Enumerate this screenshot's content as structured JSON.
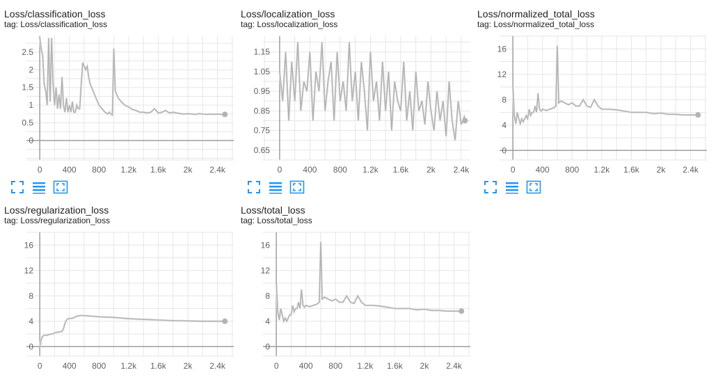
{
  "colors": {
    "line": "#b3b3b3",
    "raw": "#ececec",
    "grid": "#e6e6e6",
    "axis": "#9e9e9e",
    "icon": "#2196f3",
    "text": "#212121"
  },
  "toolbar_icons": [
    "fullscreen-icon",
    "toggle-y-log-icon",
    "fit-domain-icon"
  ],
  "chart_data": [
    {
      "type": "line",
      "title": "Loss/classification_loss",
      "tag": "tag: Loss/classification_loss",
      "xlim": [
        -180,
        2620
      ],
      "ylim": [
        -0.55,
        2.95
      ],
      "xticks": [
        0,
        400,
        800,
        1200,
        1600,
        2000,
        2400
      ],
      "xtick_labels": [
        "0",
        "400",
        "800",
        "1.2k",
        "1.6k",
        "2k",
        "2.4k"
      ],
      "yticks": [
        0,
        0.5,
        1,
        1.5,
        2,
        2.5
      ],
      "ytick_labels": [
        "0",
        "0.5",
        "1",
        "1.5",
        "2",
        "2.5"
      ],
      "series": [
        {
          "x": [
            0,
            20,
            40,
            60,
            80,
            100,
            120,
            140,
            160,
            180,
            200,
            220,
            240,
            260,
            280,
            300,
            320,
            340,
            360,
            380,
            400,
            420,
            440,
            460,
            480,
            500,
            520,
            540,
            560,
            580,
            600,
            620,
            640,
            660,
            680,
            700,
            720,
            740,
            760,
            780,
            800,
            820,
            840,
            860,
            880,
            900,
            920,
            940,
            960,
            980,
            1000,
            1020,
            1040,
            1060,
            1080,
            1100,
            1150,
            1200,
            1250,
            1300,
            1350,
            1400,
            1450,
            1500,
            1550,
            1600,
            1650,
            1700,
            1750,
            1800,
            1850,
            1900,
            1950,
            2000,
            2050,
            2100,
            2150,
            2200,
            2250,
            2300,
            2350,
            2400,
            2450,
            2500
          ],
          "y": [
            2.9,
            2.6,
            2.4,
            1.6,
            1.4,
            1.0,
            2.9,
            1.1,
            2.9,
            1.6,
            1.0,
            1.5,
            0.9,
            1.3,
            0.9,
            1.8,
            1.0,
            0.8,
            1.2,
            0.8,
            1.0,
            0.8,
            1.1,
            0.8,
            0.8,
            1.0,
            0.9,
            0.9,
            1.6,
            2.2,
            2.1,
            2.0,
            2.1,
            1.8,
            1.6,
            1.5,
            1.4,
            1.3,
            1.2,
            1.1,
            1.0,
            0.95,
            0.9,
            0.85,
            0.8,
            0.78,
            0.75,
            0.8,
            0.75,
            0.72,
            2.6,
            1.4,
            1.3,
            1.2,
            1.15,
            1.1,
            1.0,
            0.95,
            0.88,
            0.85,
            0.8,
            0.8,
            0.78,
            0.8,
            0.9,
            0.78,
            0.8,
            0.85,
            0.78,
            0.8,
            0.78,
            0.76,
            0.75,
            0.76,
            0.75,
            0.74,
            0.76,
            0.75,
            0.74,
            0.75,
            0.74,
            0.75,
            0.74,
            0.74
          ]
        }
      ]
    },
    {
      "type": "line",
      "title": "Loss/localization_loss",
      "tag": "tag: Loss/localization_loss",
      "xlim": [
        -220,
        2520
      ],
      "ylim": [
        0.6,
        1.23
      ],
      "xticks": [
        0,
        400,
        800,
        1200,
        1600,
        2000,
        2400
      ],
      "xtick_labels": [
        "0",
        "400",
        "800",
        "1.2k",
        "1.6k",
        "2k",
        "2.4k"
      ],
      "yticks": [
        0.65,
        0.75,
        0.85,
        0.95,
        1.05,
        1.15
      ],
      "ytick_labels": [
        "0.65",
        "0.75",
        "0.85",
        "0.95",
        "1.05",
        "1.15"
      ],
      "series": [
        {
          "x": [
            0,
            40,
            80,
            120,
            160,
            200,
            240,
            280,
            320,
            360,
            400,
            440,
            480,
            520,
            560,
            600,
            640,
            680,
            720,
            760,
            800,
            840,
            880,
            920,
            960,
            1000,
            1040,
            1080,
            1120,
            1160,
            1200,
            1240,
            1280,
            1320,
            1360,
            1400,
            1440,
            1480,
            1520,
            1560,
            1600,
            1640,
            1680,
            1720,
            1760,
            1800,
            1840,
            1880,
            1920,
            1960,
            2000,
            2040,
            2080,
            2120,
            2160,
            2200,
            2240,
            2280,
            2320,
            2360,
            2400,
            2440,
            2450
          ],
          "y": [
            1.05,
            0.9,
            1.15,
            0.8,
            1.1,
            0.9,
            1.2,
            0.85,
            1.0,
            0.95,
            1.15,
            0.8,
            1.05,
            0.95,
            1.2,
            0.85,
            1.0,
            1.1,
            0.8,
            1.15,
            0.9,
            1.0,
            0.85,
            1.2,
            0.9,
            1.05,
            0.8,
            1.1,
            0.95,
            0.75,
            1.15,
            0.9,
            1.0,
            0.8,
            1.1,
            0.85,
            1.05,
            0.75,
            1.0,
            0.9,
            0.85,
            1.1,
            0.8,
            0.95,
            0.75,
            1.05,
            0.85,
            0.9,
            0.78,
            1.0,
            0.85,
            0.75,
            0.95,
            0.8,
            0.9,
            0.72,
            1.0,
            0.8,
            0.7,
            0.9,
            0.78,
            0.82,
            0.8
          ]
        }
      ]
    },
    {
      "type": "line",
      "title": "Loss/normalized_total_loss",
      "tag": "tag: Loss/normalized_total_loss",
      "xlim": [
        -180,
        2620
      ],
      "ylim": [
        -1.5,
        18
      ],
      "xticks": [
        0,
        400,
        800,
        1200,
        1600,
        2000,
        2400
      ],
      "xtick_labels": [
        "0",
        "400",
        "800",
        "1.2k",
        "1.6k",
        "2k",
        "2.4k"
      ],
      "yticks": [
        0,
        4,
        8,
        12,
        16
      ],
      "ytick_labels": [
        "0",
        "4",
        "8",
        "12",
        "16"
      ],
      "series": [
        {
          "x": [
            0,
            20,
            40,
            60,
            80,
            100,
            120,
            140,
            160,
            180,
            200,
            220,
            240,
            260,
            280,
            300,
            320,
            340,
            360,
            380,
            400,
            450,
            500,
            550,
            580,
            600,
            620,
            650,
            700,
            750,
            800,
            850,
            900,
            950,
            1000,
            1050,
            1100,
            1150,
            1200,
            1300,
            1400,
            1500,
            1600,
            1700,
            1800,
            1900,
            2000,
            2100,
            2200,
            2300,
            2400,
            2500
          ],
          "y": [
            10,
            5.5,
            4.2,
            6,
            5,
            4.2,
            5,
            4.5,
            5,
            5.5,
            5,
            6.5,
            5.5,
            6,
            6,
            7,
            6,
            9,
            6.5,
            6.2,
            6.5,
            6.3,
            6.5,
            6.7,
            7,
            16.5,
            7.5,
            7.8,
            7.5,
            7.2,
            7.5,
            7,
            7,
            8,
            7,
            6.8,
            8,
            7,
            6.5,
            6.5,
            6.4,
            6.2,
            6,
            6,
            6,
            5.8,
            5.9,
            5.7,
            5.7,
            5.6,
            5.6,
            5.6
          ]
        }
      ]
    },
    {
      "type": "line",
      "title": "Loss/regularization_loss",
      "tag": "tag: Loss/regularization_loss",
      "xlim": [
        -180,
        2620
      ],
      "ylim": [
        -1.5,
        18
      ],
      "xticks": [
        0,
        400,
        800,
        1200,
        1600,
        2000,
        2400
      ],
      "xtick_labels": [
        "0",
        "400",
        "800",
        "1.2k",
        "1.6k",
        "2k",
        "2.4k"
      ],
      "yticks": [
        0,
        4,
        8,
        12,
        16
      ],
      "ytick_labels": [
        "0",
        "4",
        "8",
        "12",
        "16"
      ],
      "series": [
        {
          "x": [
            0,
            30,
            60,
            100,
            150,
            180,
            200,
            250,
            300,
            320,
            350,
            380,
            400,
            450,
            500,
            550,
            600,
            700,
            800,
            1000,
            1200,
            1400,
            1600,
            1800,
            2000,
            2200,
            2400,
            2500
          ],
          "y": [
            0,
            1.5,
            1.8,
            1.8,
            2.0,
            2.0,
            2.2,
            2.3,
            2.4,
            2.8,
            4.0,
            4.4,
            4.4,
            4.5,
            4.8,
            4.9,
            4.9,
            4.8,
            4.7,
            4.6,
            4.4,
            4.3,
            4.2,
            4.1,
            4.05,
            4.0,
            4.0,
            4.0
          ]
        }
      ]
    },
    {
      "type": "line",
      "title": "Loss/total_loss",
      "tag": "tag: Loss/total_loss",
      "xlim": [
        -180,
        2620
      ],
      "ylim": [
        -1.5,
        18
      ],
      "xticks": [
        0,
        400,
        800,
        1200,
        1600,
        2000,
        2400
      ],
      "xtick_labels": [
        "0",
        "400",
        "800",
        "1.2k",
        "1.6k",
        "2k",
        "2.4k"
      ],
      "yticks": [
        0,
        4,
        8,
        12,
        16
      ],
      "ytick_labels": [
        "0",
        "4",
        "8",
        "12",
        "16"
      ],
      "series": [
        {
          "x": [
            0,
            20,
            40,
            60,
            80,
            100,
            120,
            140,
            160,
            180,
            200,
            220,
            240,
            260,
            280,
            300,
            320,
            340,
            360,
            380,
            400,
            450,
            500,
            550,
            580,
            600,
            620,
            650,
            700,
            750,
            800,
            850,
            900,
            950,
            1000,
            1050,
            1100,
            1150,
            1200,
            1300,
            1400,
            1500,
            1600,
            1700,
            1800,
            1900,
            2000,
            2100,
            2200,
            2300,
            2400,
            2500
          ],
          "y": [
            10,
            5.5,
            4.2,
            6,
            5,
            4,
            4.5,
            4.0,
            4.5,
            5,
            5,
            6.5,
            5.5,
            6,
            6,
            7,
            6,
            9,
            6.5,
            6.2,
            6.5,
            6.3,
            6.5,
            6.7,
            7,
            16.5,
            7.5,
            7.8,
            7.5,
            7.2,
            7.5,
            7,
            7,
            8,
            7,
            6.8,
            8,
            7,
            6.5,
            6.5,
            6.4,
            6.2,
            6,
            6,
            6,
            5.8,
            5.9,
            5.7,
            5.7,
            5.6,
            5.6,
            5.6
          ]
        }
      ]
    }
  ]
}
